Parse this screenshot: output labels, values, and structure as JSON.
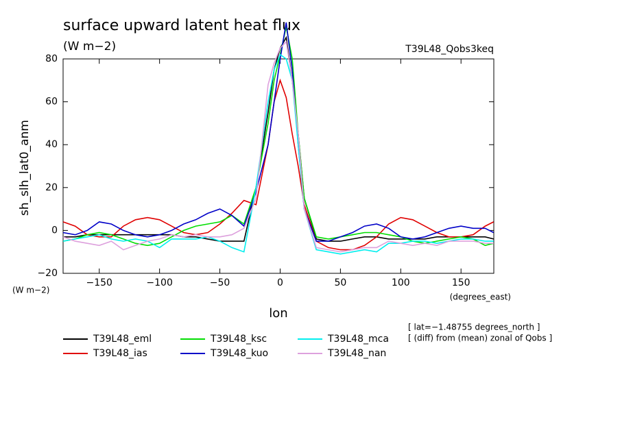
{
  "chart_data": {
    "type": "line",
    "title": "surface upward latent heat flux",
    "units": "(W m−2)",
    "run_label": "T39L48_Qobs3keq",
    "y_label": "sh_slh_lat0_anm",
    "y_unit": "(W m−2)",
    "x_unit": "(degrees_east)",
    "x_label": "lon",
    "notes": [
      "[ lat=−1.48755 degrees_north ]",
      "[ (diff) from (mean) zonal of Qobs ]"
    ],
    "xlim": [
      -180,
      177.1875
    ],
    "ylim": [
      -20,
      80
    ],
    "xticks": [
      {
        "value": -150,
        "label": "−150"
      },
      {
        "value": -100,
        "label": "−100"
      },
      {
        "value": -50,
        "label": "−50"
      },
      0,
      50,
      100,
      150
    ],
    "yticks": [
      {
        "value": -20,
        "label": "−20"
      },
      0,
      20,
      40,
      60,
      80
    ],
    "x": [
      -180,
      -170,
      -160,
      -150,
      -140,
      -130,
      -120,
      -110,
      -100,
      -90,
      -80,
      -70,
      -60,
      -50,
      -40,
      -30,
      -20,
      -10,
      -5,
      0,
      5,
      10,
      15,
      20,
      30,
      40,
      50,
      60,
      70,
      80,
      90,
      100,
      110,
      120,
      130,
      140,
      150,
      160,
      170,
      177
    ],
    "series": [
      {
        "name": "T39L48_eml",
        "color": "#000000",
        "values": [
          -3,
          -3,
          -2,
          -2,
          -2,
          -2,
          -2,
          -2,
          -2,
          -2,
          -3,
          -3,
          -4,
          -5,
          -5,
          -5,
          20,
          55,
          75,
          85,
          90,
          70,
          45,
          15,
          -4,
          -5,
          -5,
          -4,
          -3,
          -3,
          -4,
          -4,
          -4,
          -4,
          -3,
          -3,
          -3,
          -3,
          -3,
          -4
        ]
      },
      {
        "name": "T39L48_ias",
        "color": "#e00000",
        "values": [
          4,
          2,
          -2,
          -3,
          -3,
          2,
          5,
          6,
          5,
          2,
          -1,
          -2,
          -1,
          3,
          8,
          14,
          12,
          40,
          60,
          70,
          62,
          45,
          30,
          12,
          -5,
          -8,
          -9,
          -9,
          -7,
          -3,
          3,
          6,
          5,
          2,
          -1,
          -3,
          -3,
          -2,
          2,
          4
        ]
      },
      {
        "name": "T39L48_ksc",
        "color": "#00dd00",
        "values": [
          -5,
          -4,
          -2,
          -1,
          -2,
          -4,
          -6,
          -7,
          -6,
          -3,
          0,
          2,
          3,
          4,
          7,
          3,
          20,
          50,
          70,
          82,
          95,
          80,
          45,
          15,
          -3,
          -4,
          -3,
          -2,
          -1,
          -1,
          -2,
          -3,
          -5,
          -6,
          -5,
          -4,
          -3,
          -4,
          -7,
          -6
        ]
      },
      {
        "name": "T39L48_kuo",
        "color": "#0000c8",
        "values": [
          -1,
          -2,
          0,
          4,
          3,
          0,
          -2,
          -3,
          -2,
          0,
          3,
          5,
          8,
          10,
          7,
          2,
          18,
          40,
          60,
          80,
          97,
          75,
          40,
          10,
          -5,
          -5,
          -3,
          -1,
          2,
          3,
          1,
          -3,
          -4,
          -3,
          -1,
          1,
          2,
          1,
          1,
          -1
        ]
      },
      {
        "name": "T39L48_mca",
        "color": "#00eeee",
        "values": [
          -5,
          -4,
          -3,
          -2,
          -4,
          -5,
          -4,
          -5,
          -8,
          -4,
          -4,
          -4,
          -3,
          -5,
          -8,
          -10,
          20,
          60,
          75,
          82,
          80,
          70,
          40,
          10,
          -9,
          -10,
          -11,
          -10,
          -9,
          -10,
          -6,
          -6,
          -5,
          -5,
          -6,
          -5,
          -4,
          -4,
          -5,
          -5
        ]
      },
      {
        "name": "T39L48_nan",
        "color": "#dda0dd",
        "values": [
          -3,
          -5,
          -6,
          -7,
          -5,
          -9,
          -7,
          -5,
          -4,
          -2,
          -3,
          -2,
          -3,
          -3,
          -2,
          1,
          15,
          68,
          78,
          85,
          88,
          70,
          45,
          10,
          -8,
          -9,
          -10,
          -9,
          -8,
          -8,
          -5,
          -6,
          -7,
          -6,
          -7,
          -5,
          -5,
          -5,
          -6,
          -6
        ]
      }
    ]
  }
}
